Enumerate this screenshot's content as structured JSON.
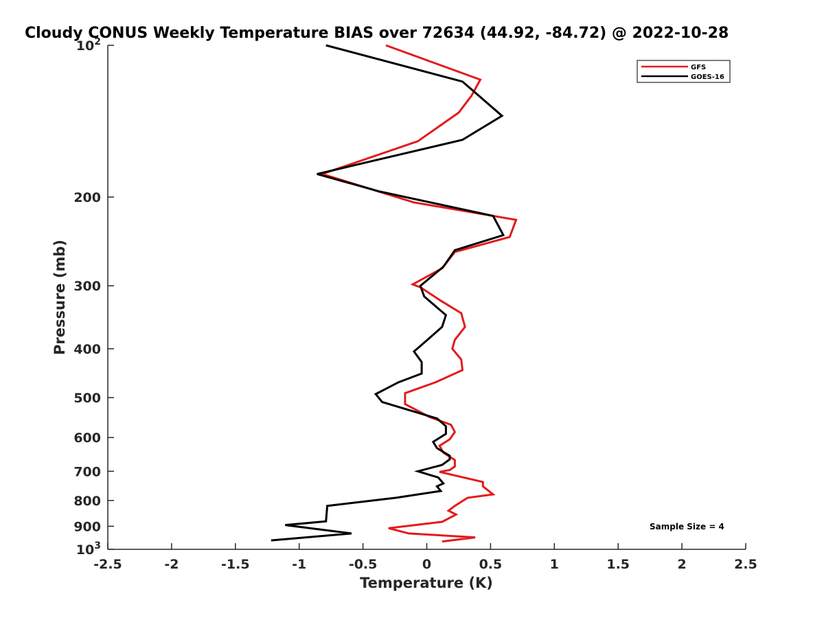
{
  "chart_data": {
    "type": "line",
    "title": "Cloudy CONUS Weekly Temperature BIAS over 72634 (44.92, -84.72) @ 2022-10-28",
    "xlabel": "Temperature (K)",
    "ylabel": "Pressure (mb)",
    "xlim": [
      -2.5,
      2.5
    ],
    "ylim": [
      100,
      1000
    ],
    "y_scale": "log",
    "y_reversed": true,
    "grid": false,
    "legend_position": "top-right",
    "x_ticks": [
      "-2.5",
      "-2",
      "-1.5",
      "-1",
      "-0.5",
      "0",
      "0.5",
      "1",
      "1.5",
      "2",
      "2.5"
    ],
    "x_tick_values": [
      -2.5,
      -2,
      -1.5,
      -1,
      -0.5,
      0,
      0.5,
      1,
      1.5,
      2,
      2.5
    ],
    "y_ticks": [
      {
        "value": 100,
        "base": "10",
        "exp": "2"
      },
      {
        "value": 200,
        "label": "200"
      },
      {
        "value": 300,
        "label": "300"
      },
      {
        "value": 400,
        "label": "400"
      },
      {
        "value": 500,
        "label": "500"
      },
      {
        "value": 600,
        "label": "600"
      },
      {
        "value": 700,
        "label": "700"
      },
      {
        "value": 800,
        "label": "800"
      },
      {
        "value": 900,
        "label": "900"
      },
      {
        "value": 1000,
        "base": "10",
        "exp": "3"
      }
    ],
    "annotation": "Sample Size = 4",
    "series": [
      {
        "name": "GFS",
        "color": "#e31a1c",
        "x": [
          -0.32,
          0.42,
          0.35,
          0.25,
          -0.07,
          -0.82,
          -0.1,
          0.7,
          0.65,
          0.22,
          0.12,
          -0.11,
          -0.05,
          0.1,
          0.27,
          0.3,
          0.22,
          0.2,
          0.27,
          0.28,
          0.07,
          -0.17,
          -0.17,
          0.02,
          0.19,
          0.22,
          0.18,
          0.1,
          0.13,
          0.22,
          0.22,
          0.18,
          0.1,
          0.44,
          0.44,
          0.52,
          0.32,
          0.22,
          0.17,
          0.23,
          0.12,
          -0.3,
          -0.14,
          0.38,
          0.12
        ],
        "y": [
          100,
          117,
          126,
          136,
          155,
          180,
          205,
          222,
          240,
          257,
          277,
          298,
          302,
          320,
          340,
          362,
          384,
          400,
          420,
          441,
          466,
          490,
          515,
          546,
          566,
          585,
          605,
          623,
          643,
          665,
          685,
          696,
          702,
          735,
          750,
          778,
          790,
          820,
          838,
          853,
          882,
          908,
          930,
          947,
          965
        ]
      },
      {
        "name": "GOES-16",
        "color": "#000000",
        "x": [
          -0.79,
          0.28,
          0.59,
          0.28,
          -0.86,
          -0.37,
          0.52,
          0.6,
          0.22,
          0.13,
          -0.05,
          -0.02,
          0.15,
          0.12,
          0.0,
          -0.1,
          -0.04,
          -0.04,
          -0.22,
          -0.4,
          -0.35,
          0.08,
          0.15,
          0.15,
          0.05,
          0.08,
          0.18,
          0.18,
          0.12,
          -0.07,
          0.09,
          0.13,
          0.08,
          0.11,
          -0.24,
          -0.78,
          -0.79,
          -1.11,
          -0.59,
          -1.22
        ],
        "y": [
          100,
          118,
          138,
          154,
          180,
          195,
          218,
          238,
          255,
          275,
          300,
          315,
          343,
          362,
          385,
          405,
          425,
          448,
          466,
          492,
          510,
          550,
          570,
          590,
          612,
          630,
          652,
          663,
          680,
          700,
          720,
          740,
          750,
          766,
          790,
          820,
          880,
          895,
          930,
          960
        ]
      }
    ]
  }
}
